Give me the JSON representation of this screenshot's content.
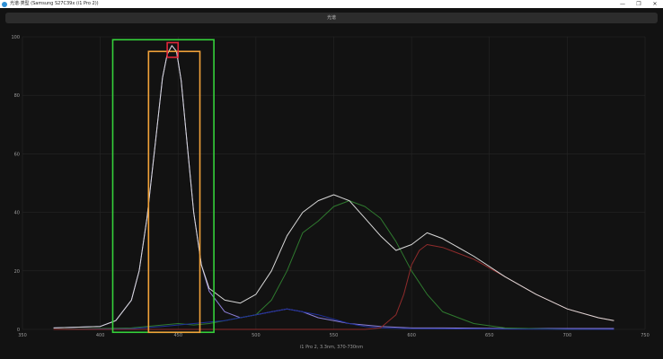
{
  "window": {
    "title": "光谱·类型 (Samsung S27C39x (i1 Pro 2))",
    "controls": [
      "—",
      "❐",
      "✕"
    ]
  },
  "toolbar": {
    "label": "光谱"
  },
  "chart_data": {
    "type": "line",
    "xlabel": "i1 Pro 2, 3.3nm, 370-730nm",
    "ylabel": "",
    "xlim": [
      350,
      750
    ],
    "ylim": [
      0,
      100
    ],
    "xticks": [
      350,
      400,
      450,
      500,
      550,
      600,
      650,
      700,
      750
    ],
    "yticks": [
      0,
      20,
      40,
      60,
      80,
      100
    ],
    "grid": true,
    "series": [
      {
        "color": "#8c7fd6",
        "x": [
          370,
          400,
          410,
          420,
          425,
          430,
          435,
          440,
          443,
          446,
          449,
          452,
          455,
          460,
          465,
          470,
          480,
          490,
          500,
          510,
          520,
          530,
          540,
          560,
          580,
          600,
          620,
          660,
          700,
          730
        ],
        "y": [
          0.5,
          1,
          3,
          10,
          20,
          38,
          62,
          86,
          94,
          97,
          95,
          85,
          68,
          40,
          22,
          13,
          6,
          4,
          5,
          6,
          7,
          6,
          4,
          2,
          1,
          0.5,
          0.5,
          0.3,
          0.3,
          0.3
        ]
      },
      {
        "color": "#2f7a2f",
        "x": [
          370,
          420,
          430,
          440,
          450,
          460,
          470,
          480,
          490,
          500,
          510,
          520,
          530,
          540,
          550,
          560,
          570,
          580,
          590,
          600,
          610,
          620,
          640,
          660,
          700,
          730
        ],
        "y": [
          0,
          0.5,
          1,
          1.5,
          2,
          1.5,
          2,
          3,
          4,
          5,
          10,
          20,
          33,
          37,
          42,
          44,
          42,
          38,
          30,
          20,
          12,
          6,
          2,
          0.5,
          0,
          0
        ]
      },
      {
        "color": "#1f2f9a",
        "x": [
          370,
          420,
          440,
          460,
          480,
          490,
          500,
          510,
          520,
          530,
          540,
          550,
          560,
          570,
          580,
          600,
          730
        ],
        "y": [
          0,
          0.2,
          1,
          2,
          3,
          4,
          5,
          6,
          7,
          6,
          5,
          3.5,
          2,
          1,
          0.5,
          0.2,
          0
        ]
      },
      {
        "color": "#8f2b2b",
        "x": [
          370,
          570,
          580,
          590,
          595,
          600,
          605,
          610,
          620,
          640,
          660,
          680,
          700,
          720,
          730
        ],
        "y": [
          0,
          0,
          0.5,
          5,
          12,
          22,
          27,
          29,
          28,
          24,
          18,
          12,
          7,
          4,
          3
        ]
      },
      {
        "color": "#d8d8d8",
        "x": [
          370,
          400,
          410,
          420,
          425,
          430,
          435,
          440,
          443,
          446,
          449,
          452,
          455,
          460,
          465,
          470,
          480,
          490,
          500,
          510,
          520,
          530,
          540,
          550,
          560,
          570,
          580,
          590,
          600,
          610,
          620,
          640,
          660,
          680,
          700,
          720,
          730
        ],
        "y": [
          0.5,
          1,
          3,
          10,
          20,
          38,
          62,
          86,
          94,
          97,
          95,
          85,
          68,
          40,
          22,
          14,
          10,
          9,
          12,
          20,
          32,
          40,
          44,
          46,
          44,
          38,
          32,
          27,
          29,
          33,
          31,
          25,
          18,
          12,
          7,
          4,
          3
        ]
      }
    ],
    "annotations": [
      {
        "type": "rect",
        "color": "#35d13a",
        "x0": 408,
        "x1": 473,
        "y0": -1,
        "y1": 99
      },
      {
        "type": "rect",
        "color": "#f2a33a",
        "x0": 431,
        "x1": 464,
        "y0": -1,
        "y1": 95
      },
      {
        "type": "rect",
        "color": "#e0283a",
        "x0": 443,
        "x1": 450,
        "y0": 93,
        "y1": 98
      }
    ]
  }
}
